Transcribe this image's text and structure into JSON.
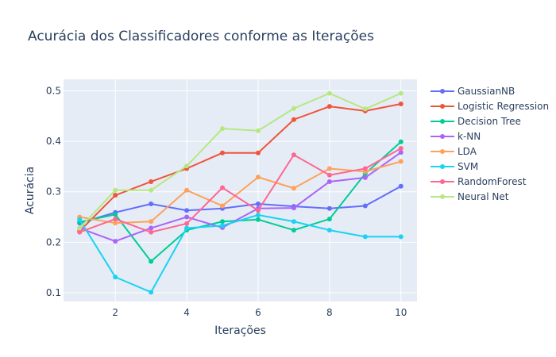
{
  "chart_data": {
    "type": "line",
    "title": "Acurácia dos Classificadores conforme as Iterações",
    "xlabel": "Iterações",
    "ylabel": "Acurácia",
    "xlim": [
      0.55,
      10.45
    ],
    "ylim": [
      0.0827,
      0.5227
    ],
    "x_ticks": [
      2,
      4,
      6,
      8,
      10
    ],
    "y_ticks": [
      0.1,
      0.2,
      0.3,
      0.4,
      0.5
    ],
    "grid": true,
    "legend_position": "right",
    "x": [
      1,
      2,
      3,
      4,
      5,
      6,
      7,
      8,
      9,
      10
    ],
    "series": [
      {
        "name": "GaussianNB",
        "color": "#636efa",
        "values": [
          0.238,
          0.259,
          0.276,
          0.263,
          0.267,
          0.276,
          0.271,
          0.267,
          0.272,
          0.311
        ]
      },
      {
        "name": "Logistic Regression",
        "color": "#EF553B",
        "values": [
          0.222,
          0.293,
          0.32,
          0.346,
          0.377,
          0.377,
          0.443,
          0.469,
          0.46,
          0.474
        ]
      },
      {
        "name": "Decision Tree",
        "color": "#00cc96",
        "values": [
          0.24,
          0.255,
          0.162,
          0.224,
          0.241,
          0.245,
          0.224,
          0.246,
          0.336,
          0.399
        ]
      },
      {
        "name": "k-NN",
        "color": "#ab63fa",
        "values": [
          0.228,
          0.202,
          0.228,
          0.25,
          0.229,
          0.267,
          0.268,
          0.32,
          0.328,
          0.378
        ]
      },
      {
        "name": "LDA",
        "color": "#FFA15A",
        "values": [
          0.25,
          0.238,
          0.241,
          0.303,
          0.272,
          0.329,
          0.307,
          0.346,
          0.34,
          0.36
        ]
      },
      {
        "name": "SVM",
        "color": "#19d3f3",
        "values": [
          0.245,
          0.131,
          0.101,
          0.228,
          0.233,
          0.254,
          0.241,
          0.224,
          0.211,
          0.211
        ]
      },
      {
        "name": "RandomForest",
        "color": "#FF6692",
        "values": [
          0.22,
          0.246,
          0.22,
          0.237,
          0.308,
          0.263,
          0.373,
          0.333,
          0.346,
          0.386
        ]
      },
      {
        "name": "Neural Net",
        "color": "#B6E880",
        "values": [
          0.228,
          0.303,
          0.303,
          0.351,
          0.425,
          0.421,
          0.465,
          0.495,
          0.464,
          0.495
        ]
      }
    ]
  }
}
